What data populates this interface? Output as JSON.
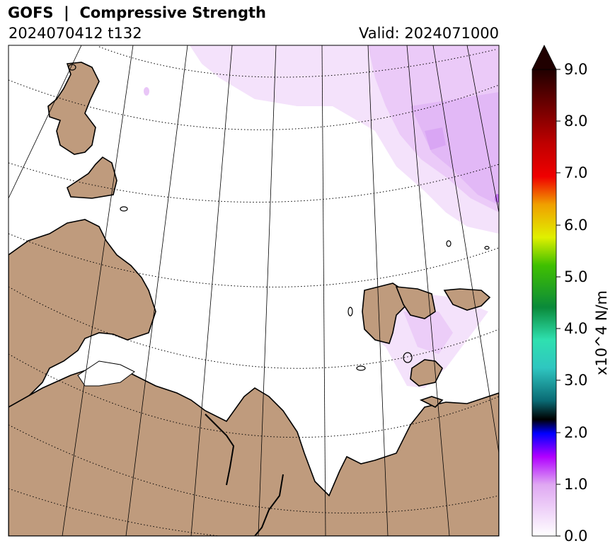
{
  "header": {
    "title": "GOFS  |  Compressive Strength",
    "run_label": "2024070412 t132",
    "valid_label": "Valid: 2024071000"
  },
  "colorbar": {
    "label": "x10^4 N/m",
    "ticks": [
      "0.0",
      "1.0",
      "2.0",
      "3.0",
      "4.0",
      "5.0",
      "6.0",
      "7.0",
      "8.0",
      "9.0"
    ],
    "min": 0.0,
    "max": 9.0,
    "extend": "max"
  },
  "colors": {
    "land": "#bf9b7d",
    "ocean": "#ffffff",
    "ice_light": "#f2dcfb",
    "ice_mid": "#e5bcf7",
    "ice_strong": "#c070ee"
  }
}
